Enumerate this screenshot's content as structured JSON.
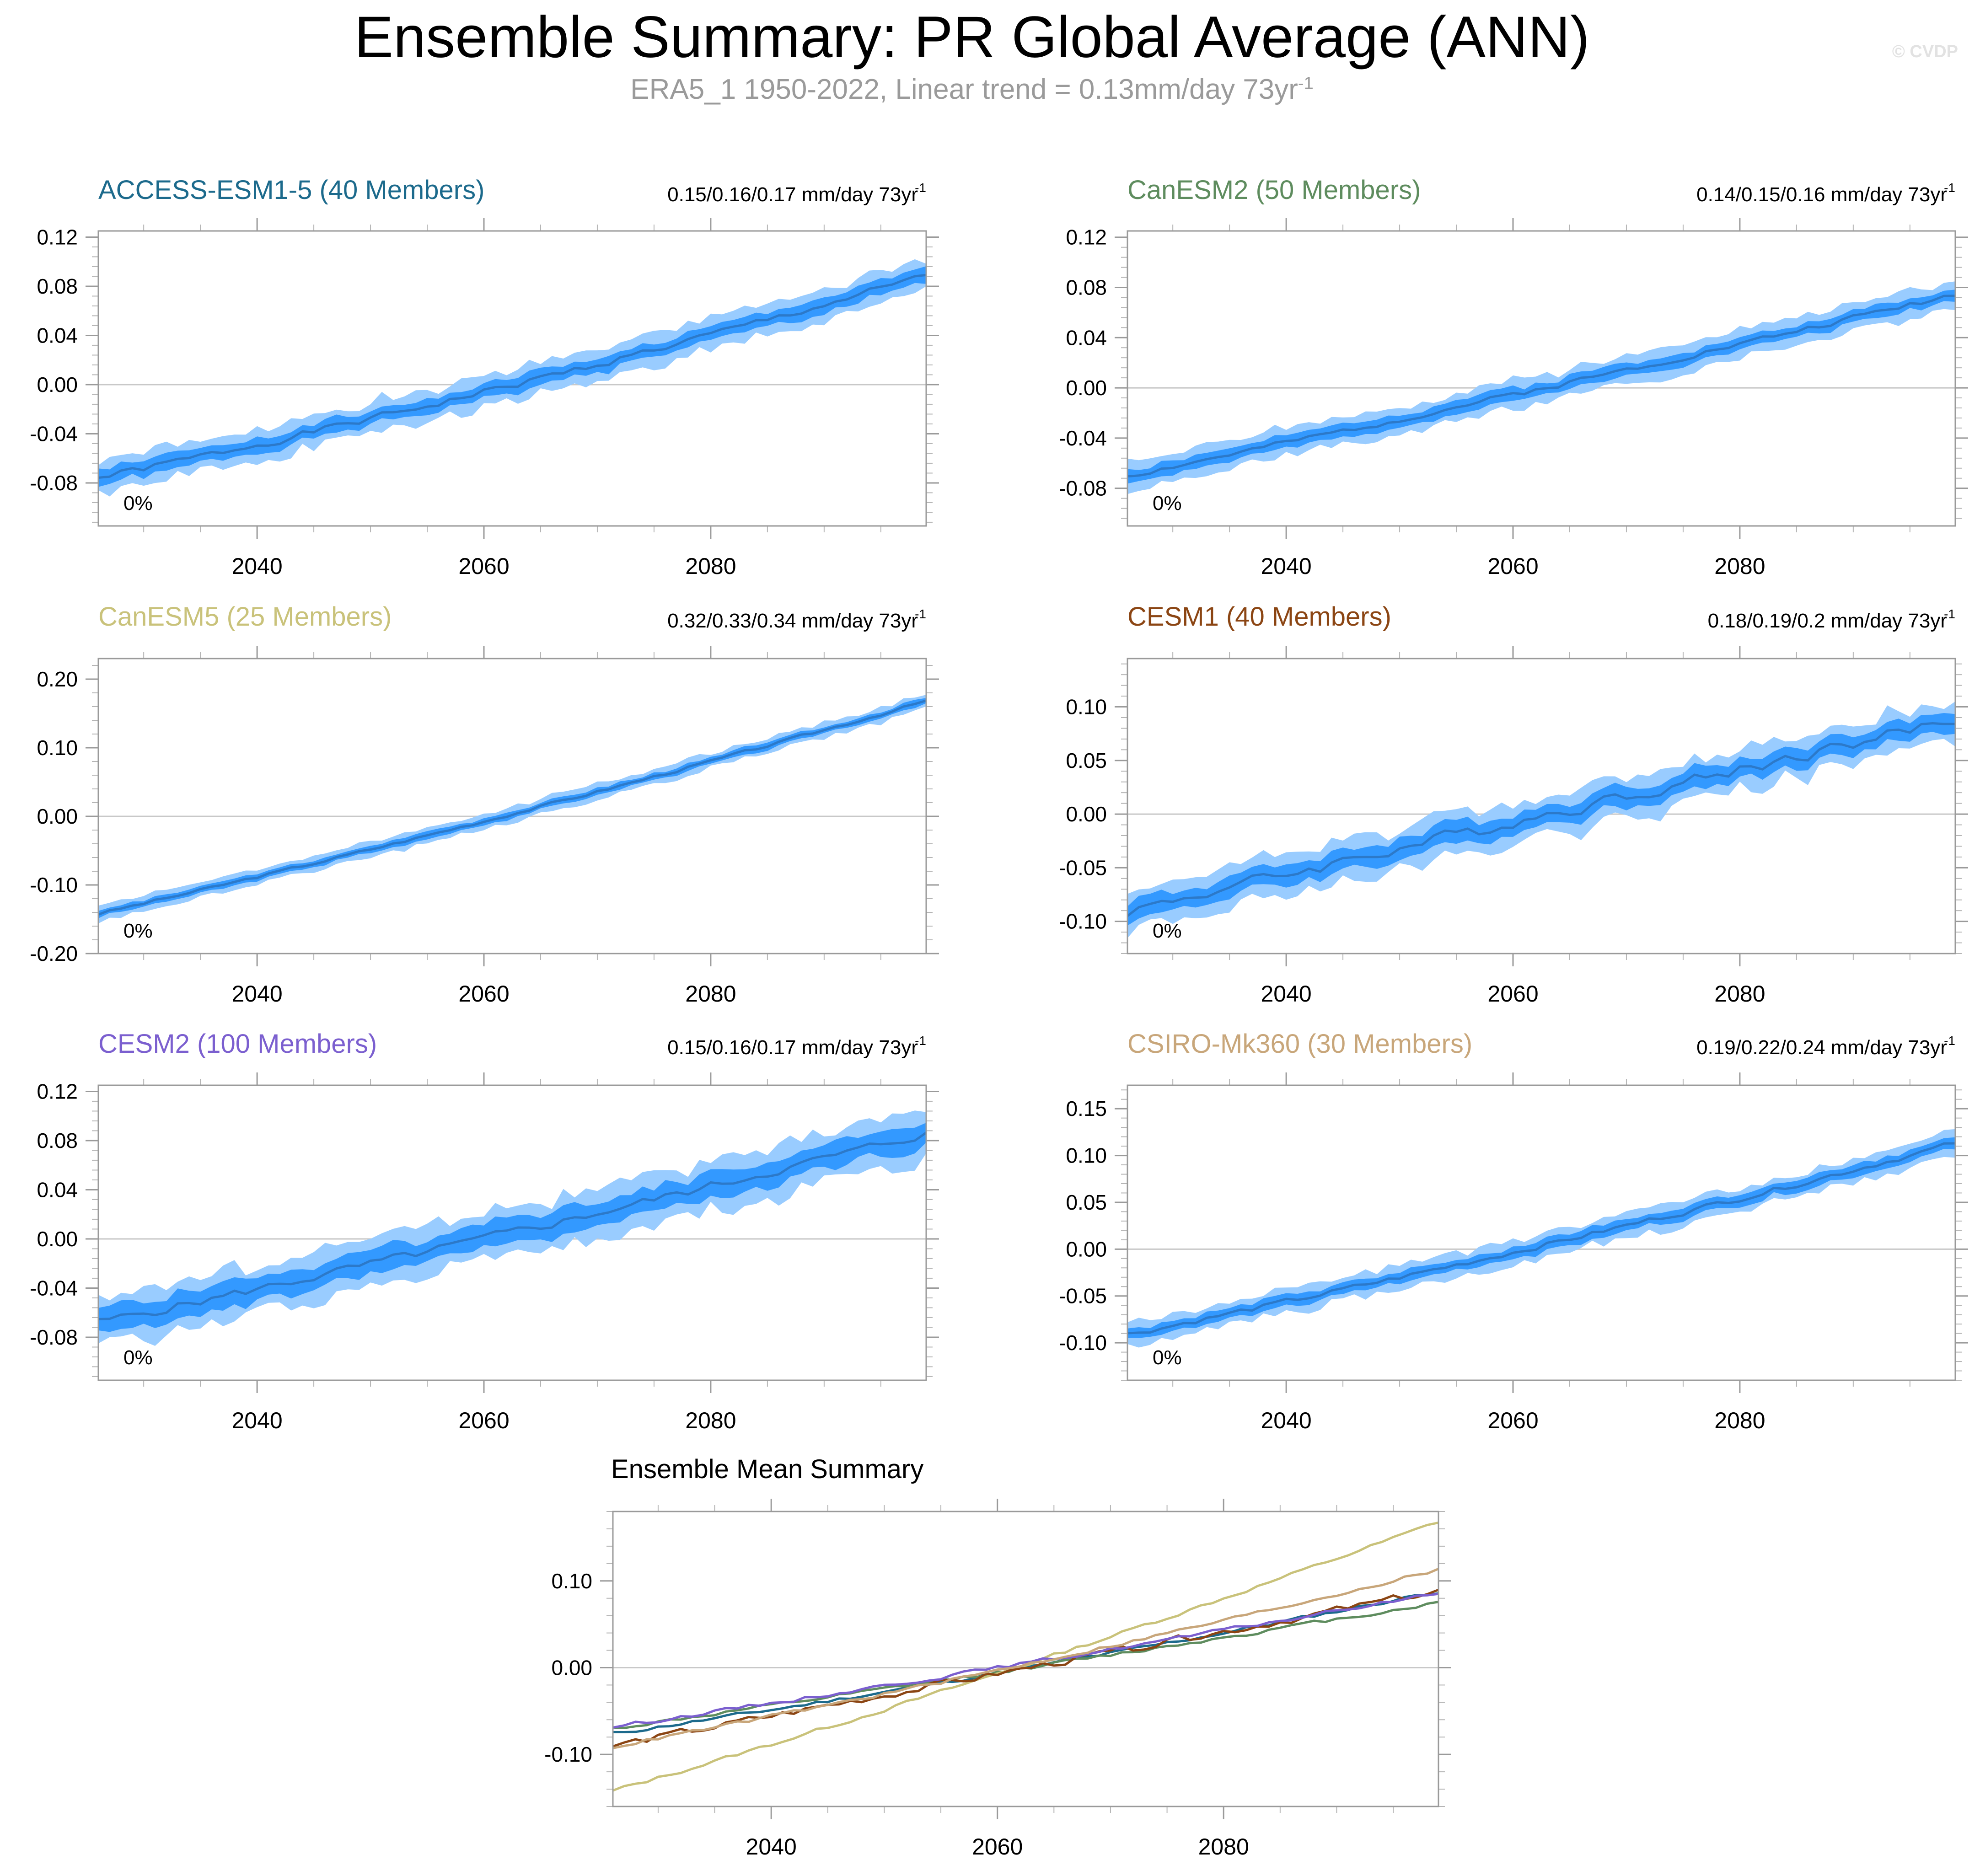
{
  "header": {
    "title": "Ensemble Summary: PR Global Average (ANN)",
    "subtitle": "ERA5_1 1950-2022, Linear trend = 0.13mm/day 73yr",
    "subtitle_sup": "-1",
    "watermark": "© CVDP"
  },
  "band_colors": {
    "outer": "#99ccff",
    "inner": "#3399ff",
    "mean": "#2c79c9"
  },
  "chart_data": [
    {
      "type": "area",
      "title": "ACCESS-ESM1-5 (40 Members)",
      "title_color": "#1c6a8c",
      "trend_label": "0.15/0.16/0.17 mm/day 73yr",
      "trend_sup": "-1",
      "percent_label": "0%",
      "x_range": [
        2026,
        2099
      ],
      "ylim": [
        -0.115,
        0.125
      ],
      "y_ticks": [
        -0.08,
        -0.04,
        0.0,
        0.04,
        0.08,
        0.12
      ],
      "y_tick_labels": [
        "-0.08",
        "-0.04",
        "0.00",
        "0.04",
        "0.08",
        "0.12"
      ],
      "x_ticks": [
        2040,
        2060,
        2080
      ],
      "x_tick_labels": [
        "2040",
        "2060",
        "2080"
      ],
      "start": -0.076,
      "end": 0.088,
      "curve": 0.16,
      "inner_half": 0.006,
      "outer_half": 0.013,
      "noise": 0.004,
      "seed": 1
    },
    {
      "type": "area",
      "title": "CanESM2 (50 Members)",
      "title_color": "#5e8c5e",
      "trend_label": "0.14/0.15/0.16 mm/day 73yr",
      "trend_sup": "-1",
      "percent_label": "0%",
      "x_range": [
        2026,
        2099
      ],
      "ylim": [
        -0.11,
        0.125
      ],
      "y_ticks": [
        -0.08,
        -0.04,
        0.0,
        0.04,
        0.08,
        0.12
      ],
      "y_tick_labels": [
        "-0.08",
        "-0.04",
        "0.00",
        "0.04",
        "0.08",
        "0.12"
      ],
      "x_ticks": [
        2040,
        2060,
        2080
      ],
      "x_tick_labels": [
        "2040",
        "2060",
        "2080"
      ],
      "start": -0.07,
      "end": 0.075,
      "curve": 0.08,
      "inner_half": 0.005,
      "outer_half": 0.011,
      "noise": 0.003,
      "seed": 2
    },
    {
      "type": "area",
      "title": "CanESM5 (25 Members)",
      "title_color": "#c9c27a",
      "trend_label": "0.32/0.33/0.34 mm/day 73yr",
      "trend_sup": "-1",
      "percent_label": "0%",
      "x_range": [
        2026,
        2099
      ],
      "ylim": [
        -0.2,
        0.23
      ],
      "y_ticks": [
        -0.2,
        -0.1,
        0.0,
        0.1,
        0.2
      ],
      "y_tick_labels": [
        "-0.20",
        "-0.10",
        "0.00",
        "0.10",
        "0.20"
      ],
      "x_ticks": [
        2040,
        2060,
        2080
      ],
      "x_tick_labels": [
        "2040",
        "2060",
        "2080"
      ],
      "start": -0.142,
      "end": 0.168,
      "curve": 0.12,
      "inner_half": 0.005,
      "outer_half": 0.011,
      "noise": 0.003,
      "seed": 3
    },
    {
      "type": "area",
      "title": "CESM1 (40 Members)",
      "title_color": "#8b4513",
      "trend_label": "0.18/0.19/0.2 mm/day 73yr",
      "trend_sup": "-1",
      "percent_label": "0%",
      "x_range": [
        2026,
        2099
      ],
      "ylim": [
        -0.13,
        0.145
      ],
      "y_ticks": [
        -0.1,
        -0.05,
        0.0,
        0.05,
        0.1
      ],
      "y_tick_labels": [
        "-0.10",
        "-0.05",
        "0.00",
        "0.05",
        "0.10"
      ],
      "x_ticks": [
        2040,
        2060,
        2080
      ],
      "x_tick_labels": [
        "2040",
        "2060",
        "2080"
      ],
      "start": -0.09,
      "end": 0.088,
      "curve": 0.0,
      "inner_half": 0.009,
      "outer_half": 0.019,
      "noise": 0.008,
      "seed": 4
    },
    {
      "type": "area",
      "title": "CESM2 (100 Members)",
      "title_color": "#7b5fcf",
      "trend_label": "0.15/0.16/0.17 mm/day 73yr",
      "trend_sup": "-1",
      "percent_label": "0%",
      "x_range": [
        2026,
        2099
      ],
      "ylim": [
        -0.115,
        0.125
      ],
      "y_ticks": [
        -0.08,
        -0.04,
        0.0,
        0.04,
        0.08,
        0.12
      ],
      "y_tick_labels": [
        "-0.08",
        "-0.04",
        "0.00",
        "0.04",
        "0.08",
        "0.12"
      ],
      "x_ticks": [
        2040,
        2060,
        2080
      ],
      "x_tick_labels": [
        "2040",
        "2060",
        "2080"
      ],
      "start": -0.068,
      "end": 0.086,
      "curve": 0.1,
      "inner_half": 0.01,
      "outer_half": 0.02,
      "noise": 0.005,
      "seed": 5
    },
    {
      "type": "area",
      "title": "CSIRO-Mk360 (30 Members)",
      "title_color": "#c8a67a",
      "trend_label": "0.19/0.22/0.24 mm/day 73yr",
      "trend_sup": "-1",
      "percent_label": "0%",
      "x_range": [
        2026,
        2099
      ],
      "ylim": [
        -0.14,
        0.175
      ],
      "y_ticks": [
        -0.1,
        -0.05,
        0.0,
        0.05,
        0.1,
        0.15
      ],
      "y_tick_labels": [
        "-0.10",
        "-0.05",
        "0.00",
        "0.05",
        "0.10",
        "0.15"
      ],
      "x_ticks": [
        2040,
        2060,
        2080
      ],
      "x_tick_labels": [
        "2040",
        "2060",
        "2080"
      ],
      "start": -0.091,
      "end": 0.113,
      "curve": 0.14,
      "inner_half": 0.006,
      "outer_half": 0.013,
      "noise": 0.004,
      "seed": 6
    },
    {
      "type": "line",
      "title": "Ensemble Mean Summary",
      "x_range": [
        2026,
        2099
      ],
      "ylim": [
        -0.16,
        0.18
      ],
      "y_ticks": [
        -0.1,
        0.0,
        0.1
      ],
      "y_tick_labels": [
        "-0.10",
        "0.00",
        "0.10"
      ],
      "x_ticks": [
        2040,
        2060,
        2080
      ],
      "x_tick_labels": [
        "2040",
        "2060",
        "2080"
      ],
      "series": [
        {
          "name": "ACCESS-ESM1-5",
          "color": "#1c6a8c",
          "start": -0.076,
          "end": 0.088,
          "curve": 0.16,
          "noise": 0.003,
          "seed": 11
        },
        {
          "name": "CanESM2",
          "color": "#5e8c5e",
          "start": -0.07,
          "end": 0.075,
          "curve": 0.08,
          "noise": 0.003,
          "seed": 12
        },
        {
          "name": "CanESM5",
          "color": "#c9c27a",
          "start": -0.142,
          "end": 0.168,
          "curve": 0.12,
          "noise": 0.003,
          "seed": 13
        },
        {
          "name": "CESM1",
          "color": "#8b4513",
          "start": -0.09,
          "end": 0.088,
          "curve": 0.0,
          "noise": 0.006,
          "seed": 14
        },
        {
          "name": "CESM2",
          "color": "#7b5fcf",
          "start": -0.068,
          "end": 0.086,
          "curve": 0.1,
          "noise": 0.003,
          "seed": 15
        },
        {
          "name": "CSIRO-Mk360",
          "color": "#c8a67a",
          "start": -0.091,
          "end": 0.113,
          "curve": 0.14,
          "noise": 0.003,
          "seed": 16
        }
      ]
    }
  ]
}
